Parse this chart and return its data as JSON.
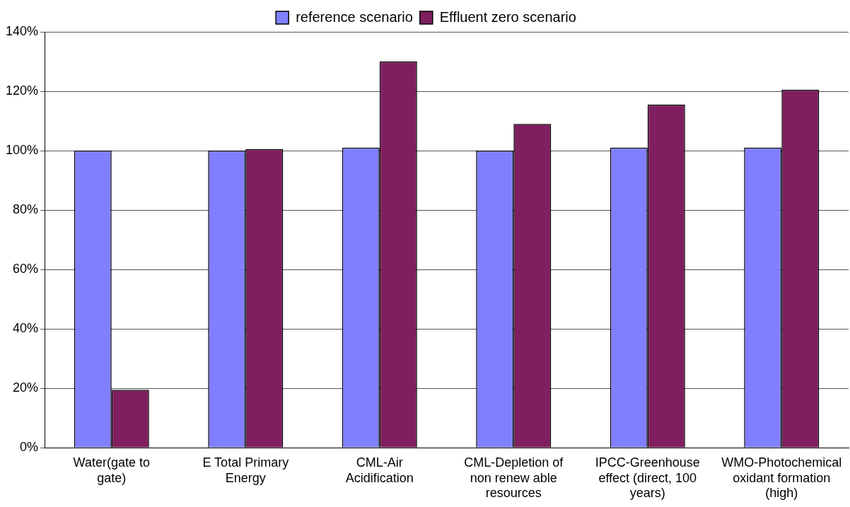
{
  "chart_data": {
    "type": "bar",
    "categories": [
      "Water(gate to gate)",
      "E Total Primary Energy",
      "CML-Air Acidification",
      "CML-Depletion of non renew able resources",
      "IPCC-Greenhouse effect (direct, 100 years)",
      "WMO-Photochemical oxidant formation (high)"
    ],
    "series": [
      {
        "name": "reference scenario",
        "color": "#8080ff",
        "values": [
          100,
          100,
          101,
          100,
          101,
          101
        ]
      },
      {
        "name": "Effluent zero scenario",
        "color": "#7f1f5f",
        "values": [
          19.5,
          100.5,
          130,
          109,
          115.5,
          120.5
        ]
      }
    ],
    "ylim": [
      0,
      140
    ],
    "yticks": [
      {
        "value": 0,
        "label": "0%"
      },
      {
        "value": 20,
        "label": "20%"
      },
      {
        "value": 40,
        "label": "40%"
      },
      {
        "value": 60,
        "label": "60%"
      },
      {
        "value": 80,
        "label": "80%"
      },
      {
        "value": 100,
        "label": "100%"
      },
      {
        "value": 120,
        "label": "120%"
      },
      {
        "value": 140,
        "label": "140%"
      }
    ],
    "grid": "y",
    "legend": "top"
  }
}
